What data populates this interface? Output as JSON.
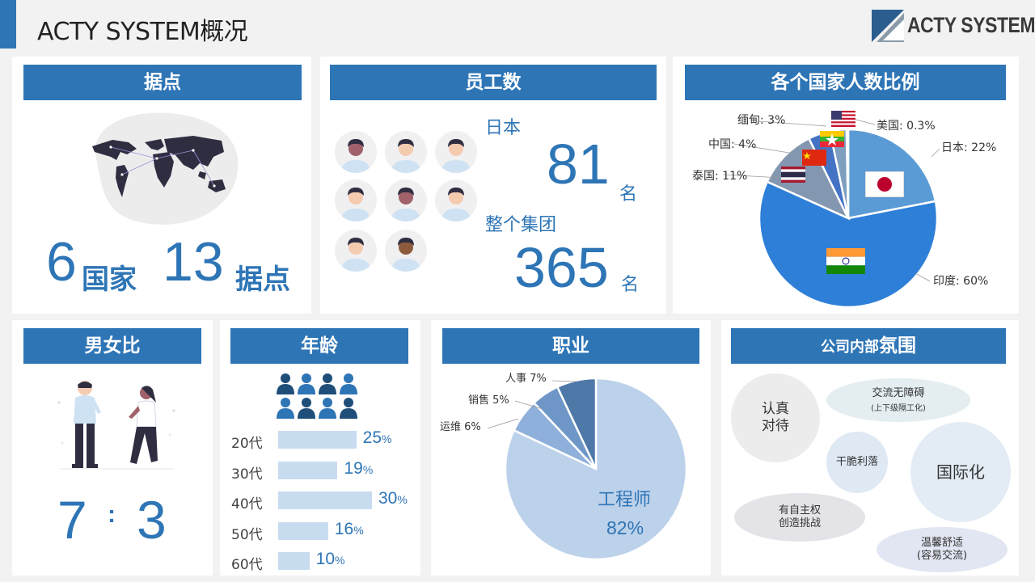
{
  "page": {
    "title": "ACTY SYSTEM概况"
  },
  "logo": {
    "text": "ACTY SYSTEM"
  },
  "locations": {
    "header": "据点",
    "countries_value": "6",
    "countries_unit": "国家",
    "bases_value": "13",
    "bases_unit": "据点"
  },
  "employees": {
    "header": "员工数",
    "japan_label": "日本",
    "japan_value": "81",
    "japan_unit": "名",
    "group_label": "整个集团",
    "group_value": "365",
    "group_unit": "名"
  },
  "countries": {
    "header": "各个国家人数比例",
    "labels": {
      "myanmar": "缅甸: 3%",
      "usa": "美国: 0.3%",
      "china": "中国: 4%",
      "japan": "日本: 22%",
      "thailand": "泰国: 11%",
      "india": "印度: 60%"
    }
  },
  "gender": {
    "header": "男女比",
    "male": "7",
    "separator": ":",
    "female": "3"
  },
  "age": {
    "header": "年龄",
    "unit": "%"
  },
  "job": {
    "header": "职业",
    "main_label": "工程师",
    "main_value": "82%",
    "labels": {
      "hr": "人事 7%",
      "sales": "销售 5%",
      "ops": "运维 6%"
    }
  },
  "culture": {
    "header_small": "公司内部",
    "header_big": "氛围",
    "bubbles": [
      {
        "text": "认真\n对待"
      },
      {
        "text": "交流无障碍",
        "sub": "(上下级隔工化)"
      },
      {
        "text": "干脆利落"
      },
      {
        "text": "国际化"
      },
      {
        "text": "有自主权\n创造挑战"
      },
      {
        "text": "温馨舒适\n(容易交流)"
      }
    ]
  },
  "chart_data": [
    {
      "type": "pie",
      "title": "各个国家人数比例",
      "categories": [
        "日本",
        "印度",
        "泰国",
        "中国",
        "缅甸",
        "美国"
      ],
      "values": [
        22,
        60,
        11,
        4,
        3,
        0.3
      ],
      "colors": [
        "#5b9bd5",
        "#2e7fd8",
        "#8497b0",
        "#4472c4",
        "#7f9fbf",
        "#cfd9e6"
      ]
    },
    {
      "type": "bar",
      "title": "年龄",
      "categories": [
        "20代",
        "30代",
        "40代",
        "50代",
        "60代"
      ],
      "values": [
        25,
        19,
        30,
        16,
        10
      ],
      "unit": "%"
    },
    {
      "type": "pie",
      "title": "职业",
      "categories": [
        "工程师",
        "运维",
        "销售",
        "人事"
      ],
      "values": [
        82,
        6,
        5,
        7
      ],
      "colors": [
        "#bcd1ea",
        "#8eb0da",
        "#6e97c8",
        "#4d78a8"
      ]
    }
  ]
}
